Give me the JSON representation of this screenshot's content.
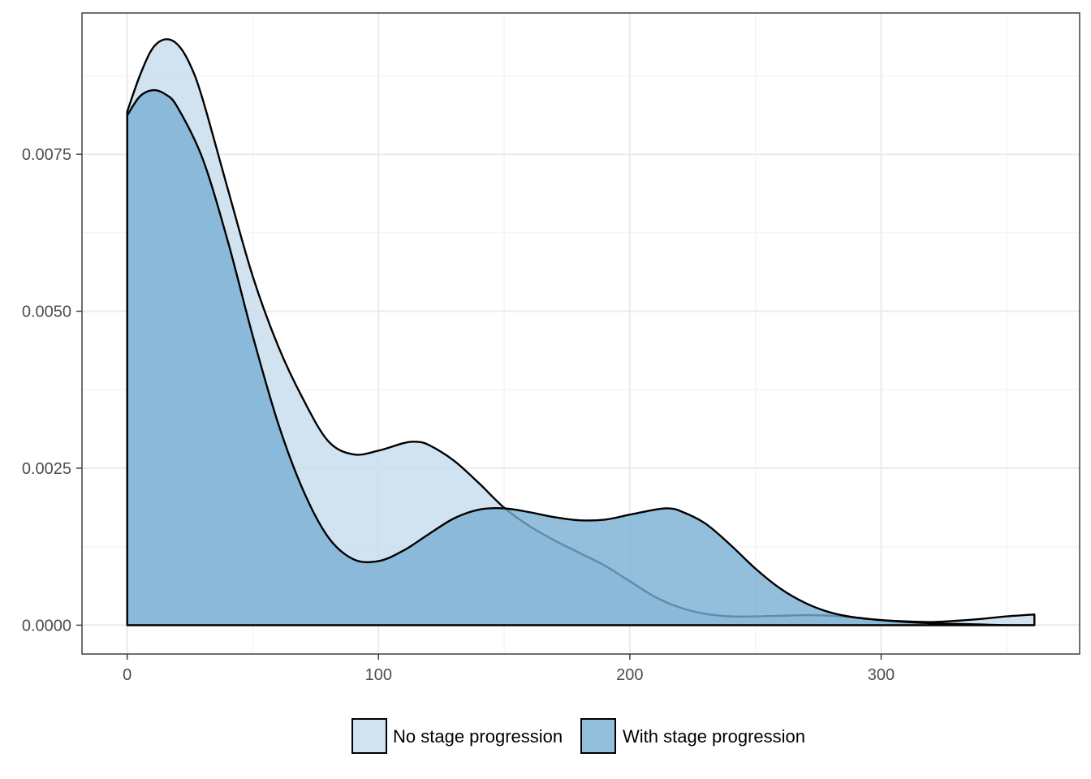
{
  "chart_data": {
    "type": "area",
    "title": "",
    "xlabel": "",
    "ylabel": "",
    "xlim": [
      -18,
      379
    ],
    "ylim": [
      -0.00046,
      0.00975
    ],
    "x_ticks": [
      0,
      100,
      200,
      300
    ],
    "x_tick_labels": [
      "0",
      "100",
      "200",
      "300"
    ],
    "y_ticks": [
      0.0,
      0.0025,
      0.005,
      0.0075
    ],
    "y_tick_labels": [
      "0.0000",
      "0.0025",
      "0.0050",
      "0.0075"
    ],
    "grid": true,
    "legend_position": "bottom",
    "series": [
      {
        "name": "No stage progression",
        "color": "#c6dcec",
        "points": [
          [
            0,
            0.00818
          ],
          [
            5,
            0.00875
          ],
          [
            10,
            0.00918
          ],
          [
            15,
            0.00933
          ],
          [
            20,
            0.00925
          ],
          [
            25,
            0.00893
          ],
          [
            30,
            0.00838
          ],
          [
            40,
            0.00695
          ],
          [
            50,
            0.00555
          ],
          [
            60,
            0.00445
          ],
          [
            70,
            0.0036
          ],
          [
            80,
            0.00293
          ],
          [
            90,
            0.00272
          ],
          [
            100,
            0.00278
          ],
          [
            110,
            0.0029
          ],
          [
            115,
            0.00292
          ],
          [
            120,
            0.00287
          ],
          [
            130,
            0.00262
          ],
          [
            140,
            0.00226
          ],
          [
            150,
            0.00187
          ],
          [
            160,
            0.00158
          ],
          [
            170,
            0.00135
          ],
          [
            180,
            0.00115
          ],
          [
            190,
            0.00095
          ],
          [
            200,
            0.0007
          ],
          [
            210,
            0.00045
          ],
          [
            220,
            0.00028
          ],
          [
            230,
            0.00018
          ],
          [
            240,
            0.00014
          ],
          [
            250,
            0.00014
          ],
          [
            260,
            0.00015
          ],
          [
            270,
            0.00016
          ],
          [
            280,
            0.00015
          ],
          [
            290,
            0.00012
          ],
          [
            300,
            8e-05
          ],
          [
            310,
            6e-05
          ],
          [
            320,
            5e-05
          ],
          [
            330,
            7e-05
          ],
          [
            340,
            0.0001
          ],
          [
            350,
            0.00014
          ],
          [
            361,
            0.00017
          ]
        ]
      },
      {
        "name": "With stage progression",
        "color": "#78aed3",
        "points": [
          [
            0,
            0.00812
          ],
          [
            5,
            0.00842
          ],
          [
            10,
            0.00852
          ],
          [
            15,
            0.00846
          ],
          [
            20,
            0.00825
          ],
          [
            30,
            0.00743
          ],
          [
            40,
            0.00612
          ],
          [
            50,
            0.0046
          ],
          [
            60,
            0.00322
          ],
          [
            70,
            0.00215
          ],
          [
            80,
            0.0014
          ],
          [
            90,
            0.00105
          ],
          [
            100,
            0.00102
          ],
          [
            110,
            0.00119
          ],
          [
            120,
            0.00145
          ],
          [
            130,
            0.0017
          ],
          [
            140,
            0.00184
          ],
          [
            150,
            0.00186
          ],
          [
            160,
            0.0018
          ],
          [
            170,
            0.00172
          ],
          [
            180,
            0.00167
          ],
          [
            190,
            0.00168
          ],
          [
            200,
            0.00176
          ],
          [
            210,
            0.00184
          ],
          [
            215,
            0.00186
          ],
          [
            220,
            0.00182
          ],
          [
            230,
            0.00162
          ],
          [
            240,
            0.00128
          ],
          [
            250,
            0.0009
          ],
          [
            260,
            0.00058
          ],
          [
            270,
            0.00035
          ],
          [
            280,
            0.0002
          ],
          [
            290,
            0.00012
          ],
          [
            300,
            8e-05
          ],
          [
            310,
            5e-05
          ],
          [
            320,
            3e-05
          ],
          [
            330,
            2e-05
          ],
          [
            340,
            1e-05
          ],
          [
            350,
            0.0
          ],
          [
            361,
            0.0
          ]
        ]
      }
    ]
  }
}
